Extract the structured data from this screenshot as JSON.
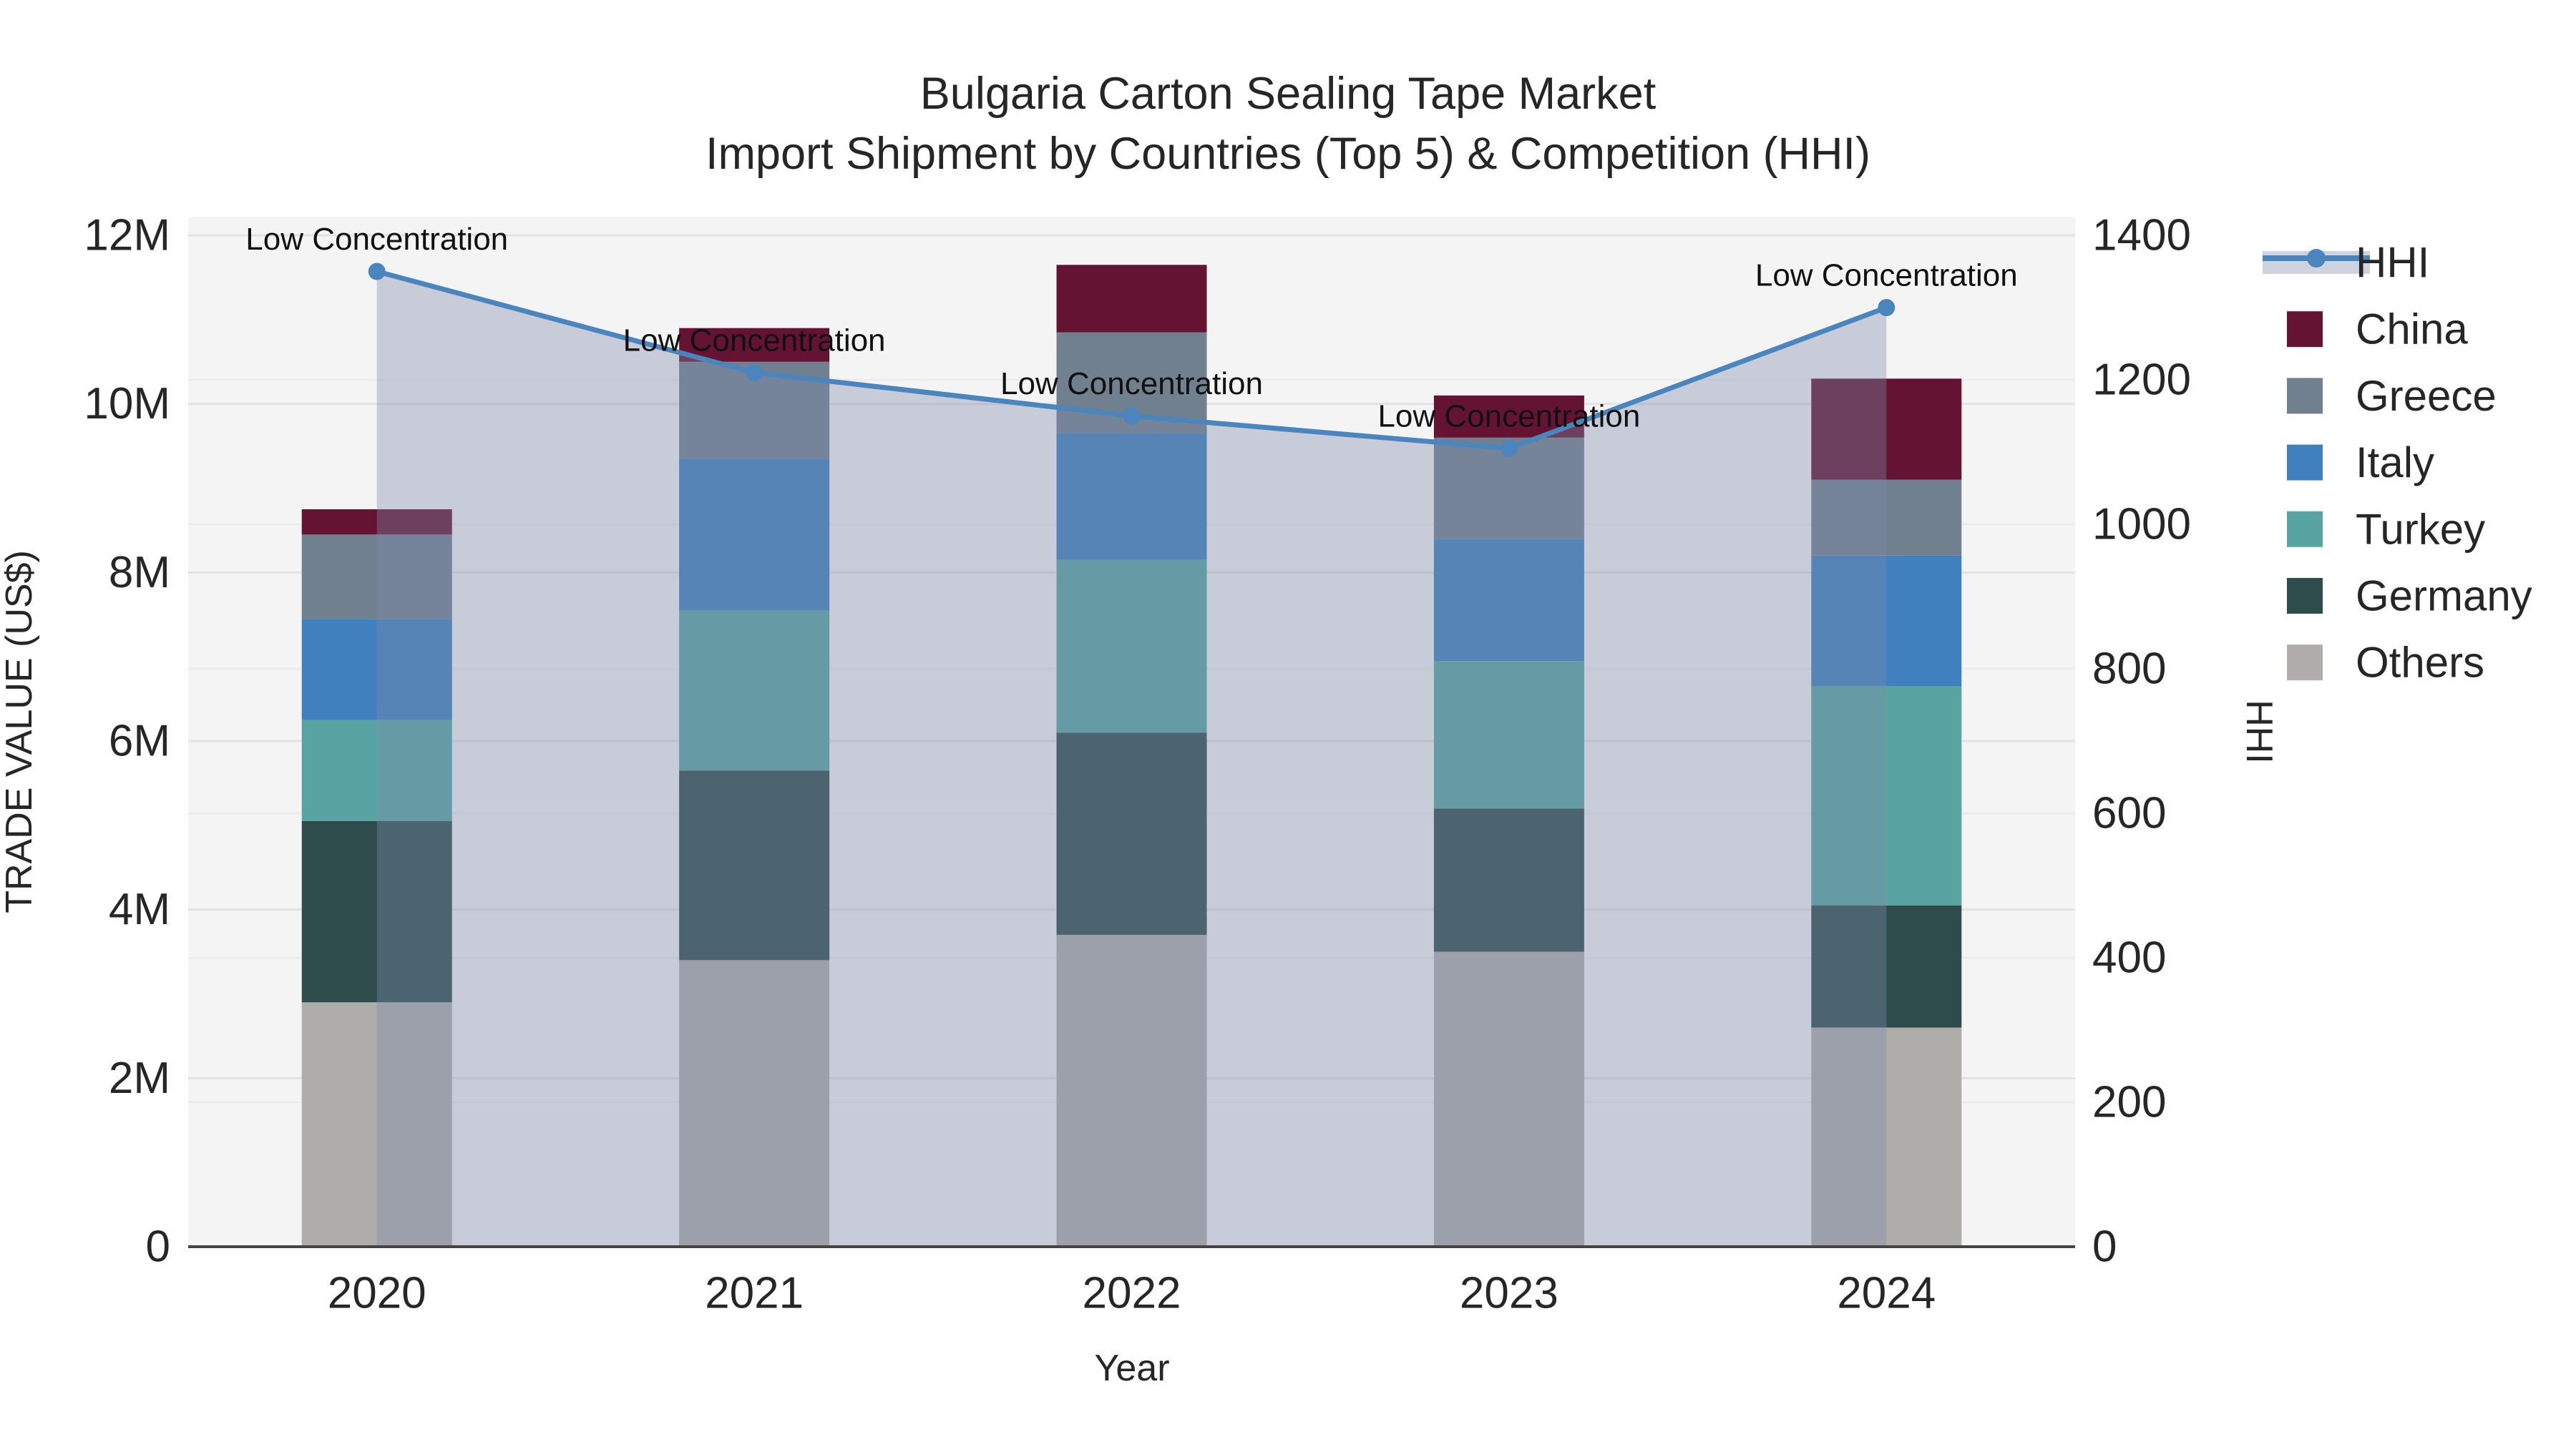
{
  "chart_data": {
    "type": "bar",
    "subtype": "stacked-bar-with-line-area",
    "title_line1": "Bulgaria Carton Sealing Tape Market",
    "title_line2": "Import Shipment by Countries (Top 5) & Competition (HHI)",
    "categories": [
      "2020",
      "2021",
      "2022",
      "2023",
      "2024"
    ],
    "units": "million US$",
    "bar_series_bottom_to_top": [
      {
        "name": "Others",
        "color": "#aeadaa",
        "values": [
          2.9,
          3.4,
          3.7,
          3.5,
          2.6
        ]
      },
      {
        "name": "Germany",
        "color": "#2e4c4b",
        "values": [
          2.15,
          2.25,
          2.4,
          1.7,
          1.45
        ]
      },
      {
        "name": "Turkey",
        "color": "#58a4a2",
        "values": [
          1.2,
          1.9,
          2.05,
          1.75,
          2.6
        ]
      },
      {
        "name": "Italy",
        "color": "#4080bf",
        "values": [
          1.2,
          1.8,
          1.5,
          1.45,
          1.55
        ]
      },
      {
        "name": "Greece",
        "color": "#71808f",
        "values": [
          1.0,
          1.15,
          1.2,
          1.2,
          0.9
        ]
      },
      {
        "name": "China",
        "color": "#651332",
        "values": [
          0.3,
          0.4,
          0.8,
          0.5,
          1.2
        ]
      }
    ],
    "bar_totals_musd": [
      8.75,
      10.9,
      11.65,
      10.1,
      10.3
    ],
    "line_series": {
      "name": "HHI",
      "color": "#4a86bd",
      "area_fill": "rgba(125,140,172,0.38)",
      "values": [
        1350,
        1210,
        1150,
        1105,
        1300
      ]
    },
    "annotations": {
      "label": "Low Concentration",
      "points": [
        "2020",
        "2021",
        "2022",
        "2023",
        "2024"
      ]
    },
    "x_axis": {
      "title": "Year"
    },
    "y_left": {
      "title": "TRADE VALUE (US$)",
      "tick_labels": [
        "0",
        "2M",
        "4M",
        "6M",
        "8M",
        "10M",
        "12M"
      ],
      "tick_values_musd": [
        0,
        2,
        4,
        6,
        8,
        10,
        12
      ],
      "range_musd": [
        0,
        12.22
      ]
    },
    "y_right": {
      "title": "HHI",
      "tick_labels": [
        "0",
        "200",
        "400",
        "600",
        "800",
        "1000",
        "1200",
        "1400"
      ],
      "tick_values": [
        0,
        200,
        400,
        600,
        800,
        1000,
        1200,
        1400
      ],
      "range": [
        0,
        1426
      ]
    },
    "legend_order": [
      "HHI",
      "China",
      "Greece",
      "Italy",
      "Turkey",
      "Germany",
      "Others"
    ],
    "colors": {
      "plot_bg": "#f4f4f4",
      "grid_money": "#e2e2e2",
      "grid_hhi": "#ececec",
      "axis_line": "#444444",
      "text": "#262626",
      "annotation": "#111111",
      "figure_bg": "#ffffff"
    },
    "layout_hints": {
      "legend_position": "right",
      "grid": "on",
      "bars_overlaid_by_translucent_hhi_area": true
    }
  }
}
